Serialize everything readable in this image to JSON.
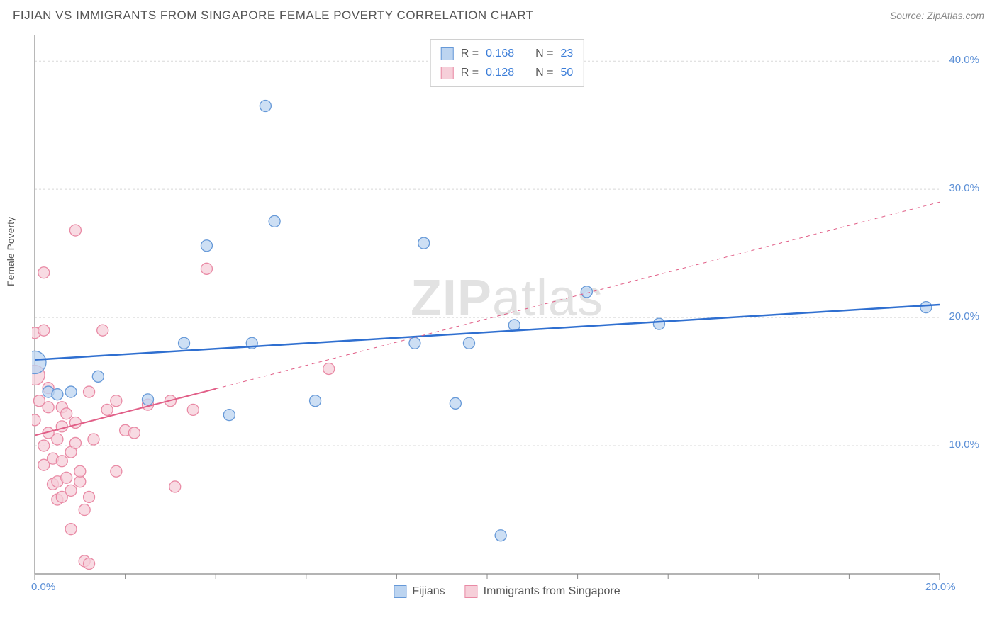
{
  "title": "FIJIAN VS IMMIGRANTS FROM SINGAPORE FEMALE POVERTY CORRELATION CHART",
  "source": "Source: ZipAtlas.com",
  "watermark_bold": "ZIP",
  "watermark_light": "atlas",
  "y_axis_label": "Female Poverty",
  "chart": {
    "type": "scatter",
    "xlim": [
      0,
      20
    ],
    "ylim": [
      0,
      42
    ],
    "x_ticks": [
      0,
      20
    ],
    "x_tick_labels": [
      "0.0%",
      "20.0%"
    ],
    "x_minor_ticks": [
      2,
      4,
      6,
      8,
      10,
      12,
      14,
      16,
      18
    ],
    "y_ticks": [
      10,
      20,
      30,
      40
    ],
    "y_tick_labels": [
      "10.0%",
      "20.0%",
      "30.0%",
      "40.0%"
    ],
    "grid_color": "#d8d8d8",
    "axis_color": "#888888",
    "background_color": "#ffffff",
    "series": [
      {
        "name": "Fijians",
        "fill": "#bcd4f0",
        "stroke": "#6699d8",
        "line_color": "#2f6fd0",
        "line_width": 2.5,
        "R": "0.168",
        "N": "23",
        "trend": {
          "x1": 0,
          "y1": 16.7,
          "x2": 20,
          "y2": 21.0,
          "solid_until_x": 20
        },
        "points": [
          {
            "x": 0.0,
            "y": 16.5,
            "r": 16
          },
          {
            "x": 0.3,
            "y": 14.2,
            "r": 8
          },
          {
            "x": 0.5,
            "y": 14.0,
            "r": 8
          },
          {
            "x": 0.8,
            "y": 14.2,
            "r": 8
          },
          {
            "x": 1.4,
            "y": 15.4,
            "r": 8
          },
          {
            "x": 2.5,
            "y": 13.6,
            "r": 8
          },
          {
            "x": 3.3,
            "y": 18.0,
            "r": 8
          },
          {
            "x": 3.8,
            "y": 25.6,
            "r": 8
          },
          {
            "x": 4.3,
            "y": 12.4,
            "r": 8
          },
          {
            "x": 4.8,
            "y": 18.0,
            "r": 8
          },
          {
            "x": 5.1,
            "y": 36.5,
            "r": 8
          },
          {
            "x": 5.3,
            "y": 27.5,
            "r": 8
          },
          {
            "x": 6.2,
            "y": 13.5,
            "r": 8
          },
          {
            "x": 8.4,
            "y": 18.0,
            "r": 8
          },
          {
            "x": 8.6,
            "y": 25.8,
            "r": 8
          },
          {
            "x": 9.3,
            "y": 13.3,
            "r": 8
          },
          {
            "x": 9.6,
            "y": 18.0,
            "r": 8
          },
          {
            "x": 10.3,
            "y": 3.0,
            "r": 8
          },
          {
            "x": 10.6,
            "y": 19.4,
            "r": 8
          },
          {
            "x": 12.2,
            "y": 22.0,
            "r": 8
          },
          {
            "x": 13.8,
            "y": 19.5,
            "r": 8
          },
          {
            "x": 19.7,
            "y": 20.8,
            "r": 8
          }
        ]
      },
      {
        "name": "Immigrants from Singapore",
        "fill": "#f6cfd9",
        "stroke": "#e98aa5",
        "line_color": "#e15e87",
        "line_width": 2,
        "R": "0.128",
        "N": "50",
        "trend": {
          "x1": 0,
          "y1": 10.8,
          "x2": 20,
          "y2": 29.0,
          "solid_until_x": 4.0
        },
        "points": [
          {
            "x": 0.0,
            "y": 15.5,
            "r": 14
          },
          {
            "x": 0.0,
            "y": 12.0,
            "r": 8
          },
          {
            "x": 0.0,
            "y": 18.8,
            "r": 8
          },
          {
            "x": 0.1,
            "y": 13.5,
            "r": 8
          },
          {
            "x": 0.2,
            "y": 8.5,
            "r": 8
          },
          {
            "x": 0.2,
            "y": 19.0,
            "r": 8
          },
          {
            "x": 0.2,
            "y": 23.5,
            "r": 8
          },
          {
            "x": 0.2,
            "y": 10.0,
            "r": 8
          },
          {
            "x": 0.3,
            "y": 14.5,
            "r": 8
          },
          {
            "x": 0.3,
            "y": 11.0,
            "r": 8
          },
          {
            "x": 0.3,
            "y": 13.0,
            "r": 8
          },
          {
            "x": 0.4,
            "y": 7.0,
            "r": 8
          },
          {
            "x": 0.4,
            "y": 9.0,
            "r": 8
          },
          {
            "x": 0.5,
            "y": 5.8,
            "r": 8
          },
          {
            "x": 0.5,
            "y": 10.5,
            "r": 8
          },
          {
            "x": 0.5,
            "y": 7.2,
            "r": 8
          },
          {
            "x": 0.6,
            "y": 8.8,
            "r": 8
          },
          {
            "x": 0.6,
            "y": 6.0,
            "r": 8
          },
          {
            "x": 0.6,
            "y": 11.5,
            "r": 8
          },
          {
            "x": 0.6,
            "y": 13.0,
            "r": 8
          },
          {
            "x": 0.7,
            "y": 12.5,
            "r": 8
          },
          {
            "x": 0.7,
            "y": 7.5,
            "r": 8
          },
          {
            "x": 0.8,
            "y": 3.5,
            "r": 8
          },
          {
            "x": 0.8,
            "y": 6.5,
            "r": 8
          },
          {
            "x": 0.8,
            "y": 9.5,
            "r": 8
          },
          {
            "x": 0.9,
            "y": 10.2,
            "r": 8
          },
          {
            "x": 0.9,
            "y": 11.8,
            "r": 8
          },
          {
            "x": 0.9,
            "y": 26.8,
            "r": 8
          },
          {
            "x": 1.0,
            "y": 7.2,
            "r": 8
          },
          {
            "x": 1.0,
            "y": 8.0,
            "r": 8
          },
          {
            "x": 1.1,
            "y": 5.0,
            "r": 8
          },
          {
            "x": 1.1,
            "y": 1.0,
            "r": 8
          },
          {
            "x": 1.2,
            "y": 6.0,
            "r": 8
          },
          {
            "x": 1.2,
            "y": 0.8,
            "r": 8
          },
          {
            "x": 1.2,
            "y": 14.2,
            "r": 8
          },
          {
            "x": 1.3,
            "y": 10.5,
            "r": 8
          },
          {
            "x": 1.5,
            "y": 19.0,
            "r": 8
          },
          {
            "x": 1.6,
            "y": 12.8,
            "r": 8
          },
          {
            "x": 1.8,
            "y": 8.0,
            "r": 8
          },
          {
            "x": 1.8,
            "y": 13.5,
            "r": 8
          },
          {
            "x": 2.0,
            "y": 11.2,
            "r": 8
          },
          {
            "x": 2.2,
            "y": 11.0,
            "r": 8
          },
          {
            "x": 2.5,
            "y": 13.2,
            "r": 8
          },
          {
            "x": 3.0,
            "y": 13.5,
            "r": 8
          },
          {
            "x": 3.1,
            "y": 6.8,
            "r": 8
          },
          {
            "x": 3.5,
            "y": 12.8,
            "r": 8
          },
          {
            "x": 3.8,
            "y": 23.8,
            "r": 8
          },
          {
            "x": 6.5,
            "y": 16.0,
            "r": 8
          }
        ]
      }
    ]
  },
  "legend_top_label_R": "R =",
  "legend_top_label_N": "N ="
}
